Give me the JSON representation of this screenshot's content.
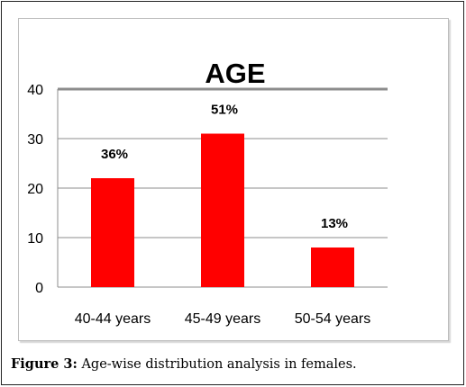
{
  "chart_data": {
    "type": "bar",
    "title": "AGE",
    "categories": [
      "40-44 years",
      "45-49 years",
      "50-54 years"
    ],
    "values": [
      22,
      31,
      8
    ],
    "data_labels": [
      "36%",
      "51%",
      "13%"
    ],
    "ylim": [
      0,
      40
    ],
    "yticks": [
      0,
      10,
      20,
      30,
      40
    ],
    "grid": true,
    "bar_color": "#ff0000",
    "xlabel": "",
    "ylabel": ""
  },
  "caption": {
    "label": "Figure 3:",
    "text": " Age-wise distribution analysis in females."
  }
}
